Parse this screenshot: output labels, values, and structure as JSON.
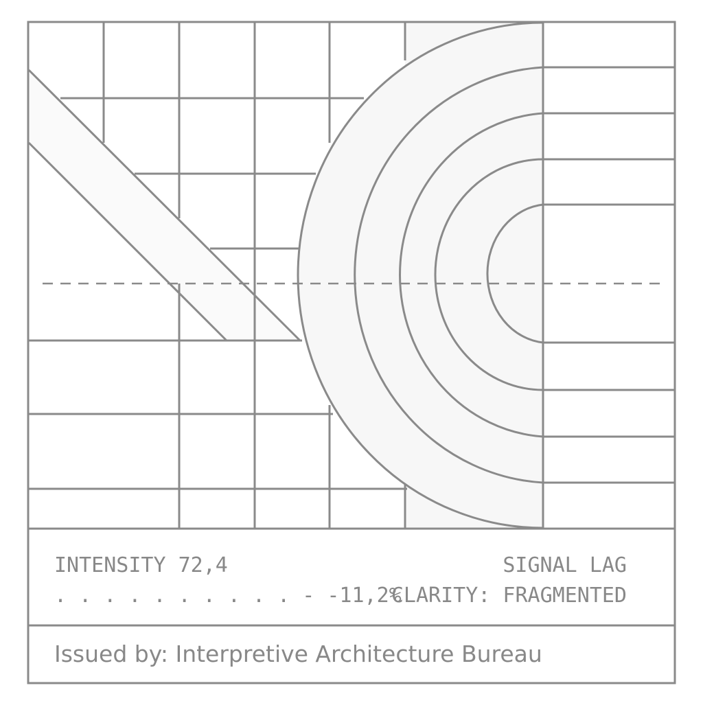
{
  "colors": {
    "line": "#8a8a8a",
    "background": "#ffffff",
    "fill_light": "#f7f7f7",
    "text": "#888888"
  },
  "readout": {
    "intensity": "INTENSITY 72,4",
    "delta": ". . . . . . . . . .  - -11,2%",
    "signal": "SIGNAL LAG",
    "clarity": "CLARITY: FRAGMENTED"
  },
  "footer": {
    "issued_by": "Issued by: Interpretive Architecture Bureau"
  }
}
